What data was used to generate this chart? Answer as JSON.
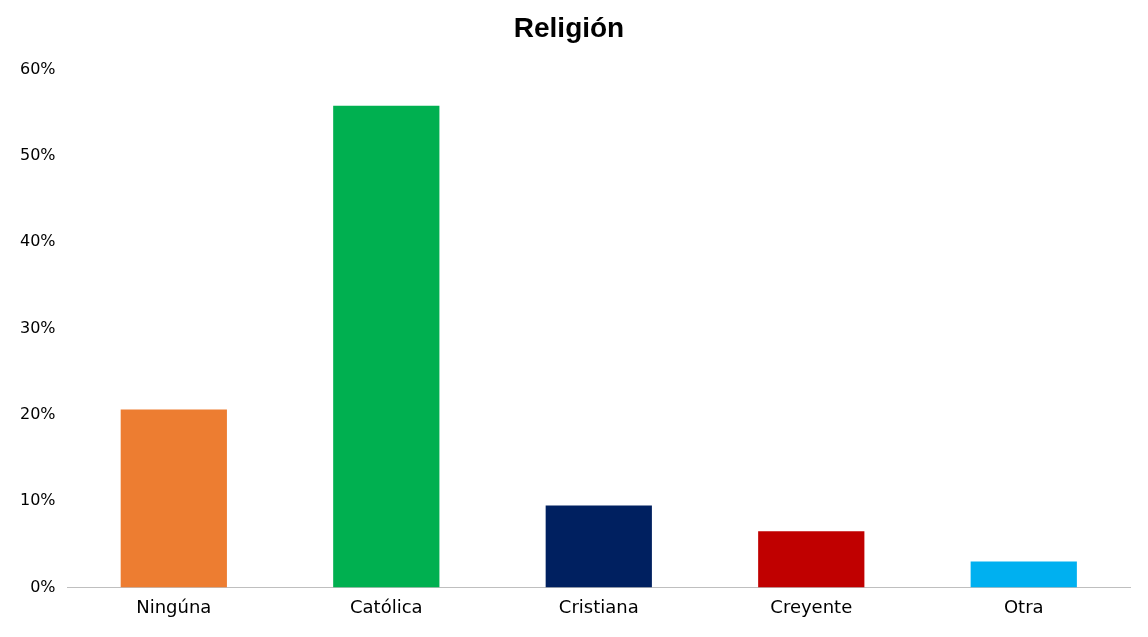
{
  "chart_data": {
    "type": "bar",
    "title": "Religión",
    "categories": [
      "Ningúna",
      "Católica",
      "Cristiana",
      "Creyente",
      "Otra"
    ],
    "values": [
      20.6,
      55.8,
      9.5,
      6.5,
      3.0
    ],
    "colors": [
      "#ed7d31",
      "#00b050",
      "#002060",
      "#c00000",
      "#00b0f0"
    ],
    "ylim": [
      0,
      60
    ],
    "yticks": [
      {
        "value": 0,
        "label": "0%"
      },
      {
        "value": 10,
        "label": "10%"
      },
      {
        "value": 20,
        "label": "20%"
      },
      {
        "value": 30,
        "label": "30%"
      },
      {
        "value": 40,
        "label": "40%"
      },
      {
        "value": 50,
        "label": "50%"
      },
      {
        "value": 60,
        "label": "60%"
      }
    ],
    "grid": false,
    "legend": false
  }
}
